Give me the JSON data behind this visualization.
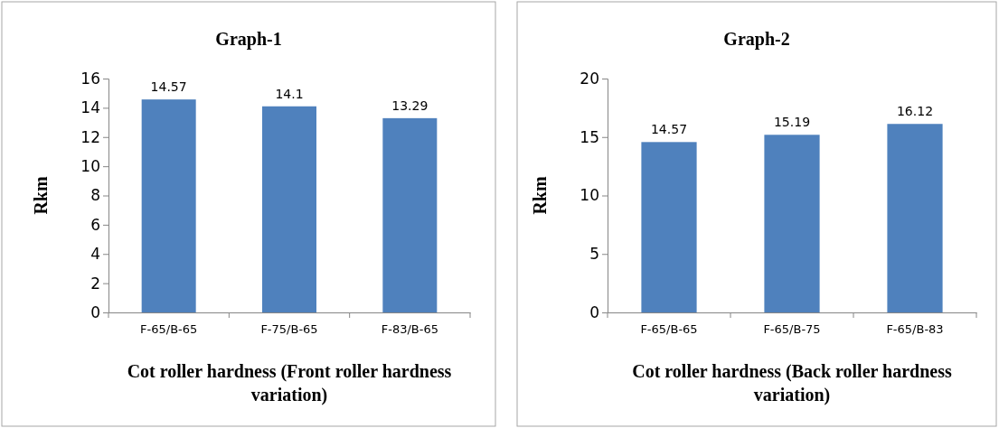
{
  "chart_data": [
    {
      "type": "bar",
      "title": "Graph-1",
      "xlabel": "Cot roller hardness (Front roller hardness variation)",
      "ylabel": "Rkm",
      "categories": [
        "F-65/B-65",
        "F-75/B-65",
        "F-83/B-65"
      ],
      "values": [
        14.57,
        14.1,
        13.29
      ],
      "color": "#4f81bd",
      "ylim": [
        0,
        16
      ],
      "yticks": [
        0,
        2,
        4,
        6,
        8,
        10,
        12,
        14,
        16
      ],
      "data_labels": true
    },
    {
      "type": "bar",
      "title": "Graph-2",
      "xlabel": "Cot roller hardness (Back roller hardness variation)",
      "ylabel": "Rkm",
      "categories": [
        "F-65/B-65",
        "F-65/B-75",
        "F-65/B-83"
      ],
      "values": [
        14.57,
        15.19,
        16.12
      ],
      "color": "#4f81bd",
      "ylim": [
        0,
        20
      ],
      "yticks": [
        0,
        5,
        10,
        15,
        20
      ],
      "data_labels": true
    }
  ]
}
